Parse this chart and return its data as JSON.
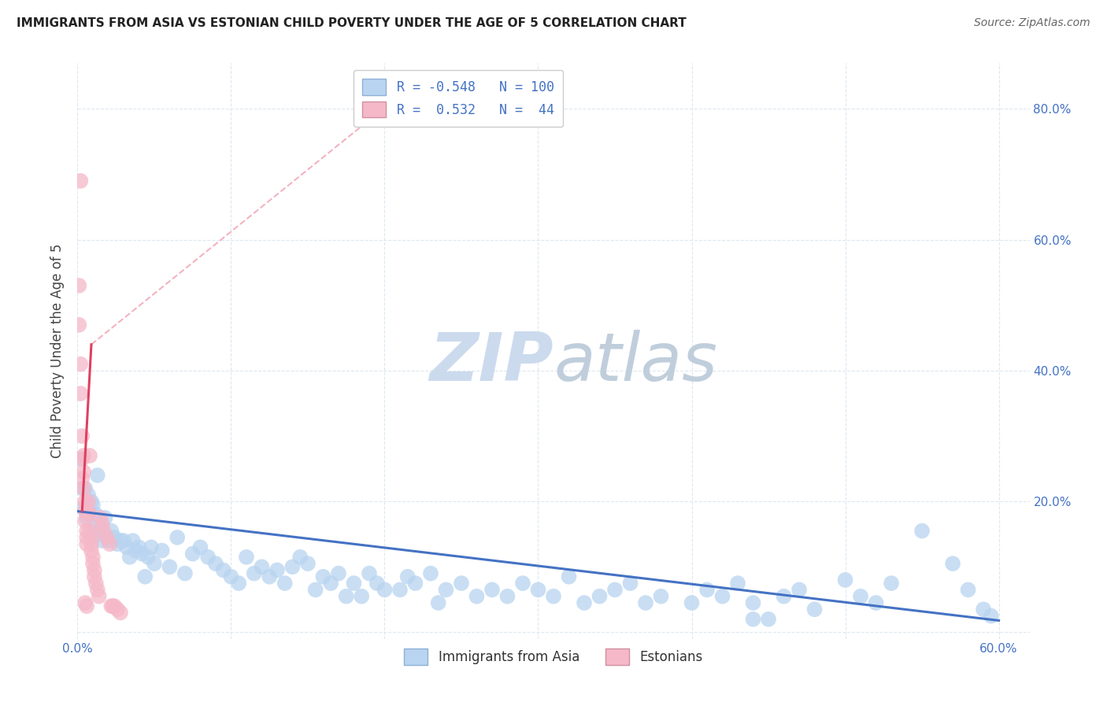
{
  "title": "IMMIGRANTS FROM ASIA VS ESTONIAN CHILD POVERTY UNDER THE AGE OF 5 CORRELATION CHART",
  "source": "Source: ZipAtlas.com",
  "ylabel": "Child Poverty Under the Age of 5",
  "legend_label1": "Immigrants from Asia",
  "legend_label2": "Estonians",
  "xlim": [
    0.0,
    0.62
  ],
  "ylim": [
    -0.01,
    0.87
  ],
  "yticks": [
    0.0,
    0.2,
    0.4,
    0.6,
    0.8
  ],
  "xticks": [
    0.0,
    0.1,
    0.2,
    0.3,
    0.4,
    0.5,
    0.6
  ],
  "blue_color": "#b8d4f0",
  "pink_color": "#f5b8c8",
  "blue_line_color": "#4472c4",
  "pink_line_color": "#e04060",
  "pink_dash_color": "#f0a0b0",
  "blue_scatter": [
    [
      0.002,
      0.265
    ],
    [
      0.003,
      0.22
    ],
    [
      0.004,
      0.19
    ],
    [
      0.005,
      0.22
    ],
    [
      0.006,
      0.175
    ],
    [
      0.007,
      0.21
    ],
    [
      0.008,
      0.185
    ],
    [
      0.009,
      0.2
    ],
    [
      0.01,
      0.195
    ],
    [
      0.011,
      0.16
    ],
    [
      0.012,
      0.18
    ],
    [
      0.013,
      0.15
    ],
    [
      0.013,
      0.24
    ],
    [
      0.014,
      0.165
    ],
    [
      0.015,
      0.155
    ],
    [
      0.016,
      0.14
    ],
    [
      0.018,
      0.175
    ],
    [
      0.02,
      0.14
    ],
    [
      0.022,
      0.155
    ],
    [
      0.024,
      0.145
    ],
    [
      0.026,
      0.135
    ],
    [
      0.028,
      0.14
    ],
    [
      0.03,
      0.14
    ],
    [
      0.032,
      0.13
    ],
    [
      0.034,
      0.115
    ],
    [
      0.036,
      0.14
    ],
    [
      0.038,
      0.125
    ],
    [
      0.04,
      0.13
    ],
    [
      0.042,
      0.12
    ],
    [
      0.044,
      0.085
    ],
    [
      0.046,
      0.115
    ],
    [
      0.048,
      0.13
    ],
    [
      0.05,
      0.105
    ],
    [
      0.055,
      0.125
    ],
    [
      0.06,
      0.1
    ],
    [
      0.065,
      0.145
    ],
    [
      0.07,
      0.09
    ],
    [
      0.075,
      0.12
    ],
    [
      0.08,
      0.13
    ],
    [
      0.085,
      0.115
    ],
    [
      0.09,
      0.105
    ],
    [
      0.095,
      0.095
    ],
    [
      0.1,
      0.085
    ],
    [
      0.105,
      0.075
    ],
    [
      0.11,
      0.115
    ],
    [
      0.115,
      0.09
    ],
    [
      0.12,
      0.1
    ],
    [
      0.125,
      0.085
    ],
    [
      0.13,
      0.095
    ],
    [
      0.135,
      0.075
    ],
    [
      0.14,
      0.1
    ],
    [
      0.145,
      0.115
    ],
    [
      0.15,
      0.105
    ],
    [
      0.155,
      0.065
    ],
    [
      0.16,
      0.085
    ],
    [
      0.165,
      0.075
    ],
    [
      0.17,
      0.09
    ],
    [
      0.175,
      0.055
    ],
    [
      0.18,
      0.075
    ],
    [
      0.185,
      0.055
    ],
    [
      0.19,
      0.09
    ],
    [
      0.195,
      0.075
    ],
    [
      0.2,
      0.065
    ],
    [
      0.21,
      0.065
    ],
    [
      0.215,
      0.085
    ],
    [
      0.22,
      0.075
    ],
    [
      0.23,
      0.09
    ],
    [
      0.235,
      0.045
    ],
    [
      0.24,
      0.065
    ],
    [
      0.25,
      0.075
    ],
    [
      0.26,
      0.055
    ],
    [
      0.27,
      0.065
    ],
    [
      0.28,
      0.055
    ],
    [
      0.29,
      0.075
    ],
    [
      0.3,
      0.065
    ],
    [
      0.31,
      0.055
    ],
    [
      0.32,
      0.085
    ],
    [
      0.33,
      0.045
    ],
    [
      0.34,
      0.055
    ],
    [
      0.35,
      0.065
    ],
    [
      0.36,
      0.075
    ],
    [
      0.37,
      0.045
    ],
    [
      0.38,
      0.055
    ],
    [
      0.4,
      0.045
    ],
    [
      0.41,
      0.065
    ],
    [
      0.42,
      0.055
    ],
    [
      0.43,
      0.075
    ],
    [
      0.44,
      0.045
    ],
    [
      0.46,
      0.055
    ],
    [
      0.47,
      0.065
    ],
    [
      0.48,
      0.035
    ],
    [
      0.5,
      0.08
    ],
    [
      0.51,
      0.055
    ],
    [
      0.52,
      0.045
    ],
    [
      0.53,
      0.075
    ],
    [
      0.55,
      0.155
    ],
    [
      0.57,
      0.105
    ],
    [
      0.58,
      0.065
    ],
    [
      0.59,
      0.035
    ],
    [
      0.595,
      0.025
    ],
    [
      0.44,
      0.02
    ],
    [
      0.45,
      0.02
    ]
  ],
  "pink_scatter": [
    [
      0.001,
      0.53
    ],
    [
      0.002,
      0.69
    ],
    [
      0.001,
      0.47
    ],
    [
      0.002,
      0.41
    ],
    [
      0.002,
      0.365
    ],
    [
      0.003,
      0.3
    ],
    [
      0.003,
      0.265
    ],
    [
      0.003,
      0.235
    ],
    [
      0.004,
      0.27
    ],
    [
      0.004,
      0.245
    ],
    [
      0.004,
      0.22
    ],
    [
      0.005,
      0.2
    ],
    [
      0.005,
      0.185
    ],
    [
      0.005,
      0.17
    ],
    [
      0.006,
      0.155
    ],
    [
      0.006,
      0.145
    ],
    [
      0.006,
      0.135
    ],
    [
      0.007,
      0.2
    ],
    [
      0.007,
      0.185
    ],
    [
      0.007,
      0.18
    ],
    [
      0.008,
      0.27
    ],
    [
      0.008,
      0.155
    ],
    [
      0.009,
      0.145
    ],
    [
      0.009,
      0.135
    ],
    [
      0.009,
      0.125
    ],
    [
      0.01,
      0.115
    ],
    [
      0.01,
      0.105
    ],
    [
      0.011,
      0.095
    ],
    [
      0.011,
      0.085
    ],
    [
      0.012,
      0.075
    ],
    [
      0.013,
      0.065
    ],
    [
      0.014,
      0.055
    ],
    [
      0.015,
      0.175
    ],
    [
      0.016,
      0.165
    ],
    [
      0.017,
      0.155
    ],
    [
      0.019,
      0.145
    ],
    [
      0.021,
      0.135
    ],
    [
      0.022,
      0.04
    ],
    [
      0.023,
      0.04
    ],
    [
      0.024,
      0.04
    ],
    [
      0.026,
      0.035
    ],
    [
      0.028,
      0.03
    ],
    [
      0.005,
      0.045
    ],
    [
      0.006,
      0.04
    ]
  ],
  "watermark_zip": "ZIP",
  "watermark_atlas": "atlas",
  "watermark_color_zip": "#c8d8ee",
  "watermark_color_atlas": "#c0ccdd",
  "background_color": "#ffffff",
  "grid_color": "#dde8f0"
}
